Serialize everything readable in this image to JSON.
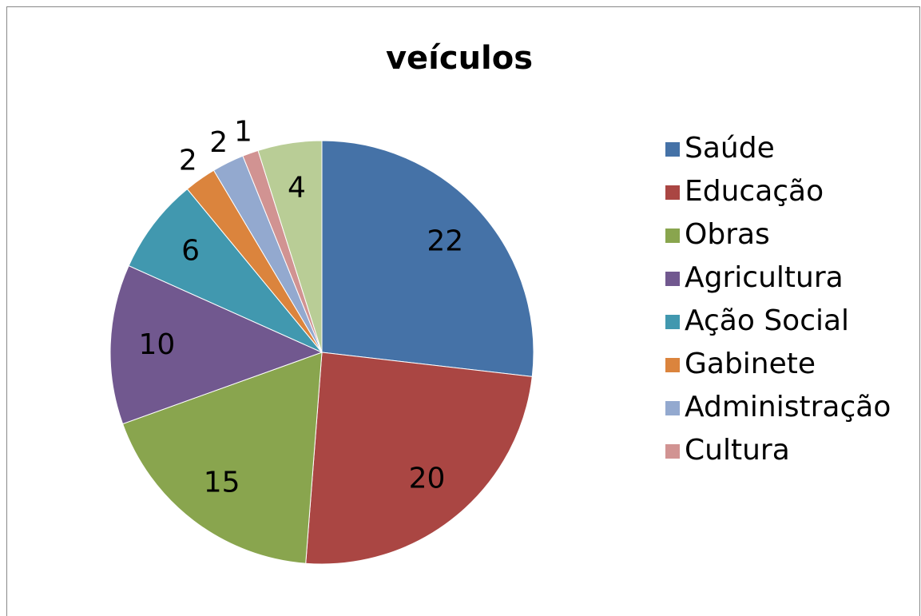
{
  "chart_data": {
    "type": "pie",
    "title": "veículos",
    "categories": [
      "Saúde",
      "Educação",
      "Obras",
      "Agricultura",
      "Ação Social",
      "Gabinete",
      "Administração",
      "Cultura",
      null
    ],
    "values": [
      22,
      20,
      15,
      10,
      6,
      2,
      2,
      1,
      4
    ],
    "colors": [
      "#4572a7",
      "#aa4643",
      "#89a54e",
      "#71588f",
      "#4198af",
      "#db843d",
      "#93a9cf",
      "#d19392",
      "#b9cd96"
    ],
    "legend": "right"
  }
}
